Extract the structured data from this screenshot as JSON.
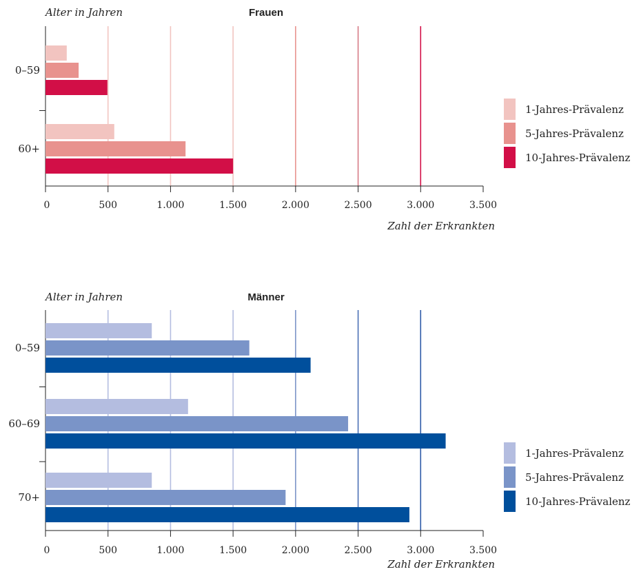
{
  "chart_data": [
    {
      "type": "bar",
      "orientation": "horizontal",
      "title": "Frauen",
      "ylabel": "Alter in Jahren",
      "xlabel": "Zahl der Erkrankten",
      "categories": [
        "0–59",
        "60+"
      ],
      "xlim": [
        0,
        3500
      ],
      "xticks": [
        0,
        500,
        1000,
        1500,
        2000,
        2500,
        3000,
        3500
      ],
      "xtick_labels": [
        "0",
        "500",
        "1.000",
        "1.500",
        "2.000",
        "2.500",
        "3.000",
        "3.500"
      ],
      "grid": true,
      "legend_position": "right",
      "series": [
        {
          "name": "1-Jahres-Prävalenz",
          "color": "#f2c4c0",
          "values": [
            170,
            550
          ]
        },
        {
          "name": "5-Jahres-Prävalenz",
          "color": "#e8928e",
          "values": [
            265,
            1120
          ]
        },
        {
          "name": "10-Jahres-Prävalenz",
          "color": "#d20f47",
          "values": [
            495,
            1500
          ]
        }
      ],
      "grid_colors": [
        "#f2c4c0",
        "#f2c4c0",
        "#f2c4c0",
        "#f2c4c0",
        "#e8928e",
        "#d67a86",
        "#d20f47"
      ]
    },
    {
      "type": "bar",
      "orientation": "horizontal",
      "title": "Männer",
      "ylabel": "Alter in Jahren",
      "xlabel": "Zahl der Erkrankten",
      "categories": [
        "0–59",
        "60–69",
        "70+"
      ],
      "xlim": [
        0,
        3500
      ],
      "xticks": [
        0,
        500,
        1000,
        1500,
        2000,
        2500,
        3000,
        3500
      ],
      "xtick_labels": [
        "0",
        "500",
        "1.000",
        "1.500",
        "2.000",
        "2.500",
        "3.000",
        "3.500"
      ],
      "grid": true,
      "legend_position": "right",
      "series": [
        {
          "name": "1-Jahres-Prävalenz",
          "color": "#b4bde0",
          "values": [
            850,
            1140,
            850
          ]
        },
        {
          "name": "5-Jahres-Prävalenz",
          "color": "#7a94c8",
          "values": [
            1630,
            2420,
            1920
          ]
        },
        {
          "name": "10-Jahres-Prävalenz",
          "color": "#004f9c",
          "values": [
            2120,
            3200,
            2910
          ]
        }
      ],
      "grid_colors": [
        "#b4bde0",
        "#b4bde0",
        "#b4bde0",
        "#b4bde0",
        "#7a94c8",
        "#4a6fb5",
        "#2d5aa8"
      ]
    }
  ]
}
